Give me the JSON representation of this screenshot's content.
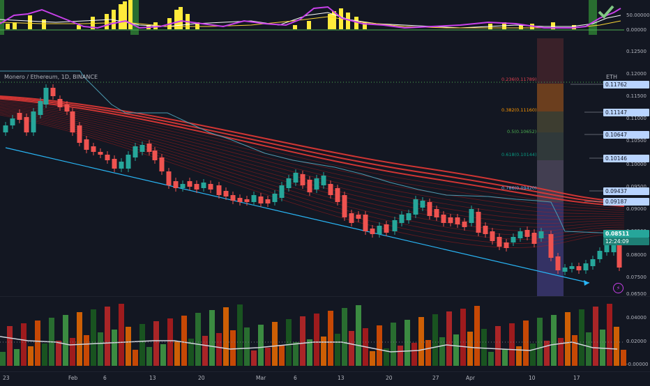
{
  "header": {
    "symbol_line": "Monero / Ethereum, 1D, BINANCE",
    "currency": "ETH"
  },
  "top_axis": [
    "50.00000",
    "0.00000"
  ],
  "price_axis": [
    "0.12500",
    "0.12000",
    "0.11500",
    "0.11000",
    "0.10500",
    "0.10000",
    "0.09500",
    "0.09000",
    "0.08500",
    "0.08000",
    "0.07500",
    "0.06500"
  ],
  "price_tags": {
    "tag1": "0.11762",
    "tag2": "0.11147",
    "tag3": "0.10647",
    "tag4": "0.10146",
    "tag5": "0.09437",
    "tag6": "0.09187",
    "current_price": "0.08511",
    "countdown": "12:24:09"
  },
  "fib_levels": [
    {
      "label": "0.236(0.11789)",
      "color": "#e0414f"
    },
    {
      "label": "0.382(0.11160)",
      "color": "#ff9800"
    },
    {
      "label": "0.5(0.10652)",
      "color": "#4caf50"
    },
    {
      "label": "0.618(0.10144)",
      "color": "#089981"
    },
    {
      "label": "0.786(0.09420)",
      "color": "#64b5f6"
    }
  ],
  "volume_axis": [
    "0.04000",
    "0.02000",
    "-0.00000"
  ],
  "time_axis": [
    "23",
    "Feb",
    "6",
    "13",
    "20",
    "Mar",
    "6",
    "13",
    "20",
    "27",
    "Apr",
    "10",
    "17"
  ],
  "colors": {
    "bull": "#26a69a",
    "bear": "#ef5350",
    "ribbon": "#c62828",
    "trendline": "#29b6f6",
    "signal_up": "#4caf50",
    "signal_down": "#e53935",
    "background": "#131722"
  }
}
